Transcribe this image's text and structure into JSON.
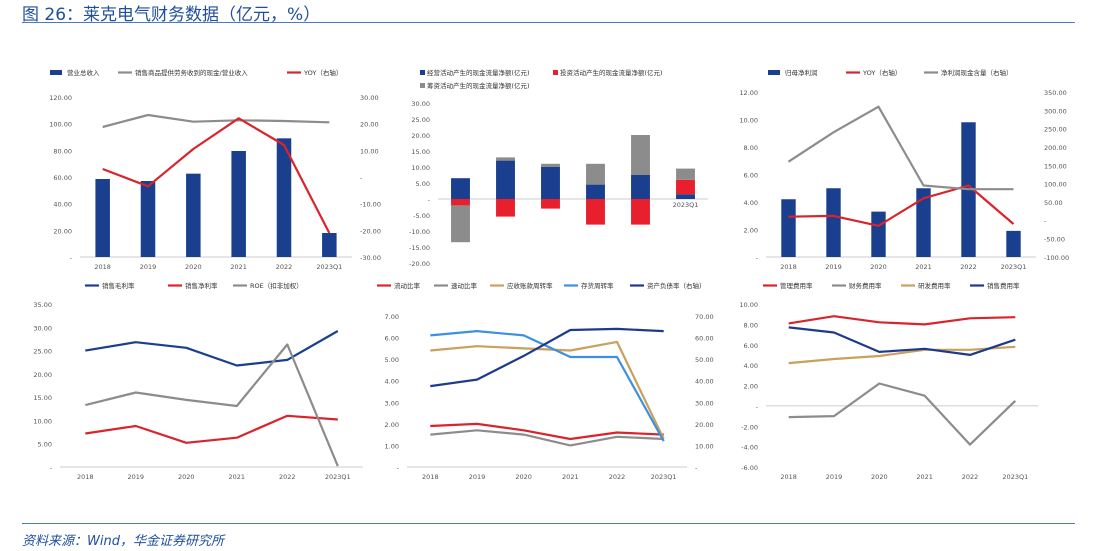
{
  "title": "图 26：莱克电气财务数据（亿元，%）",
  "source": "资料来源：Wind，华金证券研究所",
  "colors": {
    "blue": "#1a3f8f",
    "red": "#d9242c",
    "gray": "#8c8c8c",
    "gold": "#c9a05c",
    "lightblue": "#3d8fe0",
    "navy": "#1e3a8a"
  },
  "chart_data": [
    {
      "id": "c1",
      "type": "bar+line",
      "x": [
        "2018",
        "2019",
        "2020",
        "2021",
        "2022",
        "2023Q1"
      ],
      "left_ticks": [
        "120.00",
        "100.00",
        "80.00",
        "60.00",
        "40.00",
        "20.00",
        "-"
      ],
      "right_ticks": [
        "30.00",
        "20.00",
        "10.00",
        "-",
        "-10.00",
        "-20.00",
        "-30.00"
      ],
      "ylim": [
        0,
        120
      ],
      "y2lim": [
        -30,
        30
      ],
      "series": [
        {
          "name": "营业总收入",
          "type": "bar",
          "axis": "left",
          "color": "#1a3f8f",
          "values": [
            58.5,
            57.0,
            62.5,
            79.5,
            89.0,
            18.0
          ]
        },
        {
          "name": "销售商品提供劳务收到的现金/营业收入",
          "type": "line",
          "axis": "left",
          "color": "#8c8c8c",
          "values": [
            97.5,
            106.5,
            101.5,
            102.5,
            102.0,
            101.0
          ]
        },
        {
          "name": "YOY（右轴）",
          "type": "line",
          "axis": "right",
          "color": "#d9242c",
          "values": [
            3.0,
            -3.5,
            10.5,
            22.0,
            12.0,
            -21.0
          ]
        }
      ]
    },
    {
      "id": "c2",
      "type": "stacked-bar",
      "x": [
        "2018",
        "2019",
        "2020",
        "2021",
        "2022",
        "2023Q1"
      ],
      "left_ticks": [
        "30.00",
        "25.00",
        "20.00",
        "15.00",
        "10.00",
        "5.00",
        "-",
        "-5.00",
        "-10.00",
        "-15.00",
        "-20.00"
      ],
      "ylim": [
        -20,
        30
      ],
      "series": [
        {
          "name": "经营活动产生的现金流量净额(亿元)",
          "color": "#1a3f8f",
          "values": [
            6.5,
            12.0,
            10.0,
            4.5,
            7.5,
            1.5
          ]
        },
        {
          "name": "投资活动产生的现金流量净额(亿元)",
          "color": "#e8202e",
          "values": [
            -2.0,
            -5.5,
            -3.0,
            -8.0,
            -8.0,
            4.5
          ]
        },
        {
          "name": "筹资活动产生的现金流量净额(亿元)",
          "color": "#8c8c8c",
          "values": [
            -11.5,
            1.0,
            1.0,
            6.5,
            12.5,
            3.5
          ]
        }
      ]
    },
    {
      "id": "c3",
      "type": "bar+line",
      "x": [
        "2018",
        "2019",
        "2020",
        "2021",
        "2022",
        "2023Q1"
      ],
      "left_ticks": [
        "12.00",
        "10.00",
        "8.00",
        "6.00",
        "4.00",
        "2.00",
        "-"
      ],
      "right_ticks": [
        "350.00",
        "300.00",
        "250.00",
        "200.00",
        "150.00",
        "100.00",
        "50.00",
        "-",
        "-50.00",
        "-100.00"
      ],
      "ylim": [
        0,
        12
      ],
      "y2lim": [
        -100,
        350
      ],
      "series": [
        {
          "name": "归母净利润",
          "type": "bar",
          "axis": "left",
          "color": "#1a3f8f",
          "values": [
            4.2,
            5.0,
            3.3,
            5.0,
            9.8,
            1.9
          ]
        },
        {
          "name": "YOY（右轴）",
          "type": "line",
          "axis": "right",
          "color": "#d9242c",
          "values": [
            10,
            12,
            -15,
            60,
            95,
            -10
          ]
        },
        {
          "name": "净利润现金含量（右轴）",
          "type": "line",
          "axis": "right",
          "color": "#8c8c8c",
          "values": [
            160,
            240,
            310,
            95,
            85,
            85
          ]
        }
      ]
    },
    {
      "id": "c4",
      "type": "line",
      "x": [
        "2018",
        "2019",
        "2020",
        "2021",
        "2022",
        "2023Q1"
      ],
      "left_ticks": [
        "35.00",
        "30.00",
        "25.00",
        "20.00",
        "15.00",
        "10.00",
        "5.00",
        "-"
      ],
      "ylim": [
        0,
        35
      ],
      "series": [
        {
          "name": "销售毛利率",
          "color": "#1a3f8f",
          "values": [
            25.0,
            26.8,
            25.6,
            21.8,
            23.0,
            29.2
          ]
        },
        {
          "name": "销售净利率",
          "color": "#d9242c",
          "values": [
            7.2,
            8.8,
            5.2,
            6.3,
            11.0,
            10.2
          ]
        },
        {
          "name": "ROE（扣非加权）",
          "color": "#8c8c8c",
          "values": [
            13.3,
            16.0,
            14.4,
            13.1,
            26.3,
            0.2
          ]
        }
      ]
    },
    {
      "id": "c5",
      "type": "line",
      "x": [
        "2018",
        "2019",
        "2020",
        "2021",
        "2022",
        "2023Q1"
      ],
      "left_ticks": [
        "7.00",
        "6.00",
        "5.00",
        "4.00",
        "3.00",
        "2.00",
        "1.00",
        "-"
      ],
      "right_ticks": [
        "70.00",
        "60.00",
        "50.00",
        "40.00",
        "30.00",
        "20.00",
        "10.00",
        "-"
      ],
      "ylim": [
        0,
        7
      ],
      "y2lim": [
        0,
        70
      ],
      "series": [
        {
          "name": "流动比率",
          "axis": "left",
          "color": "#d9242c",
          "values": [
            1.9,
            2.0,
            1.7,
            1.3,
            1.6,
            1.5
          ]
        },
        {
          "name": "速动比率",
          "axis": "left",
          "color": "#8c8c8c",
          "values": [
            1.5,
            1.7,
            1.5,
            1.0,
            1.4,
            1.3
          ]
        },
        {
          "name": "应收账款周转率",
          "axis": "left",
          "color": "#c9a05c",
          "values": [
            5.4,
            5.6,
            5.5,
            5.4,
            5.8,
            1.3
          ]
        },
        {
          "name": "存货周转率",
          "axis": "left",
          "color": "#3d8fe0",
          "values": [
            6.1,
            6.3,
            6.1,
            5.1,
            5.1,
            1.2
          ]
        },
        {
          "name": "资产负债率（右轴）",
          "axis": "right",
          "color": "#1e3a8a",
          "values": [
            37.5,
            40.5,
            51.5,
            63.5,
            64.0,
            63.0
          ]
        }
      ]
    },
    {
      "id": "c6",
      "type": "line",
      "x": [
        "2018",
        "2019",
        "2020",
        "2021",
        "2022",
        "2023Q1"
      ],
      "left_ticks": [
        "10.00",
        "8.00",
        "6.00",
        "4.00",
        "2.00",
        "-",
        "-2.00",
        "-4.00",
        "-6.00"
      ],
      "ylim": [
        -6,
        10
      ],
      "series": [
        {
          "name": "管理费用率",
          "color": "#d9242c",
          "values": [
            8.1,
            8.8,
            8.2,
            8.0,
            8.6,
            8.7
          ]
        },
        {
          "name": "财务费用率",
          "color": "#8c8c8c",
          "values": [
            -1.1,
            -1.0,
            2.2,
            1.0,
            -3.8,
            0.5
          ]
        },
        {
          "name": "研发费用率",
          "color": "#c9a05c",
          "values": [
            4.2,
            4.6,
            4.9,
            5.5,
            5.5,
            5.8
          ]
        },
        {
          "name": "销售费用率",
          "color": "#1e3a8a",
          "values": [
            7.7,
            7.2,
            5.3,
            5.6,
            5.0,
            6.5
          ]
        }
      ]
    }
  ]
}
